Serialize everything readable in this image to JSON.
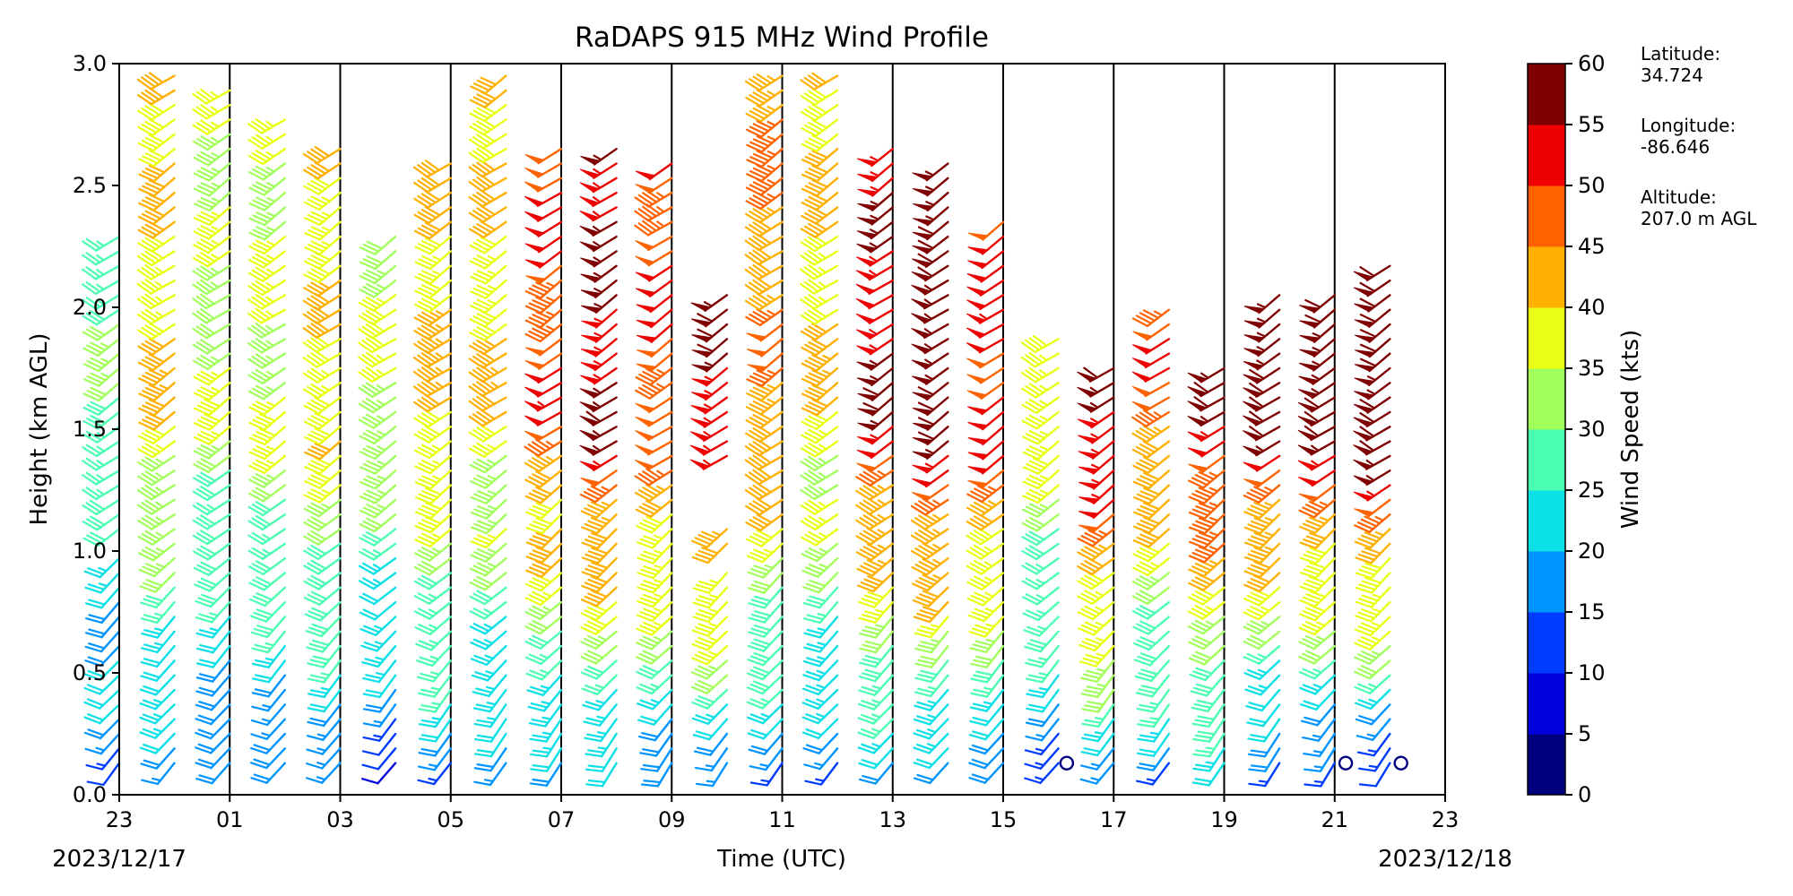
{
  "chart_data": {
    "type": "wind-barb",
    "title": "RaDAPS 915 MHz Wind Profile",
    "xlabel": "Time (UTC)",
    "ylabel": "Height (km AGL)",
    "x_ticks": [
      "23",
      "01",
      "03",
      "05",
      "07",
      "09",
      "11",
      "13",
      "15",
      "17",
      "19",
      "21",
      "23"
    ],
    "x_range_hours": [
      23,
      47
    ],
    "y_range": [
      0.0,
      3.0
    ],
    "y_ticks": [
      "0.0",
      "0.5",
      "1.0",
      "1.5",
      "2.0",
      "2.5",
      "3.0"
    ],
    "date_start": "2023/12/17",
    "date_end": "2023/12/18",
    "vertical_grid": true,
    "colorbar": {
      "label": "Wind Speed (kts)",
      "ticks": [
        "0",
        "5",
        "10",
        "15",
        "20",
        "25",
        "30",
        "35",
        "40",
        "45",
        "50",
        "55",
        "60"
      ],
      "bounds": [
        0,
        60
      ],
      "colors": [
        "#00007f",
        "#0000db",
        "#003cff",
        "#0094ff",
        "#0ae0e6",
        "#4bffb2",
        "#a2ff5b",
        "#e9ff13",
        "#ffb000",
        "#ff6300",
        "#ee0000",
        "#7f0000"
      ]
    },
    "profiles": [
      {
        "hour": 23.0,
        "top": 2.3,
        "low": 12,
        "high": 30,
        "gaps": [
          [
            1.0,
            1.05
          ]
        ]
      },
      {
        "hour": 24.0,
        "top": 3.0,
        "low": 12,
        "high": 40,
        "gaps": []
      },
      {
        "hour": 25.0,
        "top": 2.9,
        "low": 12,
        "high": 35,
        "gaps": []
      },
      {
        "hour": 26.0,
        "top": 2.8,
        "low": 12,
        "high": 36,
        "gaps": []
      },
      {
        "hour": 27.0,
        "top": 2.7,
        "low": 12,
        "high": 40,
        "gaps": []
      },
      {
        "hour": 28.0,
        "top": 2.3,
        "low": 8,
        "high": 36,
        "gaps": []
      },
      {
        "hour": 29.0,
        "top": 2.6,
        "low": 12,
        "high": 42,
        "gaps": []
      },
      {
        "hour": 30.0,
        "top": 3.0,
        "low": 12,
        "high": 40,
        "gaps": []
      },
      {
        "hour": 31.0,
        "top": 2.7,
        "low": 12,
        "high": 50,
        "gaps": []
      },
      {
        "hour": 32.0,
        "top": 2.7,
        "low": 12,
        "high": 56,
        "gaps": []
      },
      {
        "hour": 33.0,
        "top": 2.6,
        "low": 12,
        "high": 50,
        "gaps": []
      },
      {
        "hour": 34.0,
        "top": 2.1,
        "low": 12,
        "high": 56,
        "gaps": [
          [
            1.1,
            1.35
          ],
          [
            0.95,
            1.0
          ]
        ]
      },
      {
        "hour": 35.0,
        "top": 3.0,
        "low": 12,
        "high": 45,
        "gaps": []
      },
      {
        "hour": 36.0,
        "top": 3.0,
        "low": 12,
        "high": 40,
        "gaps": []
      },
      {
        "hour": 37.0,
        "top": 2.7,
        "low": 12,
        "high": 55,
        "gaps": []
      },
      {
        "hour": 38.0,
        "top": 2.6,
        "low": 10,
        "high": 58,
        "gaps": []
      },
      {
        "hour": 39.0,
        "top": 2.4,
        "low": 12,
        "high": 52,
        "gaps": []
      },
      {
        "hour": 40.0,
        "top": 1.9,
        "low": 12,
        "high": 38,
        "gaps": []
      },
      {
        "hour": 41.0,
        "top": 1.8,
        "low": 12,
        "high": 58,
        "gaps": []
      },
      {
        "hour": 42.0,
        "top": 2.0,
        "low": 12,
        "high": 48,
        "gaps": []
      },
      {
        "hour": 43.0,
        "top": 1.8,
        "low": 14,
        "high": 55,
        "gaps": []
      },
      {
        "hour": 44.0,
        "top": 2.1,
        "low": 5,
        "high": 58,
        "gaps": []
      },
      {
        "hour": 45.0,
        "top": 2.1,
        "low": 5,
        "high": 58,
        "gaps": []
      },
      {
        "hour": 46.0,
        "top": 2.2,
        "low": 5,
        "high": 60,
        "gaps": []
      }
    ],
    "calm": [
      {
        "hour": 40.15,
        "height": 0.13
      },
      {
        "hour": 45.2,
        "height": 0.13
      },
      {
        "hour": 46.2,
        "height": 0.13
      }
    ]
  },
  "site": {
    "latitude_label": "Latitude:",
    "latitude_value": "34.724",
    "longitude_label": "Longitude:",
    "longitude_value": "-86.646",
    "altitude_label": "Altitude:",
    "altitude_value": "207.0 m AGL"
  }
}
